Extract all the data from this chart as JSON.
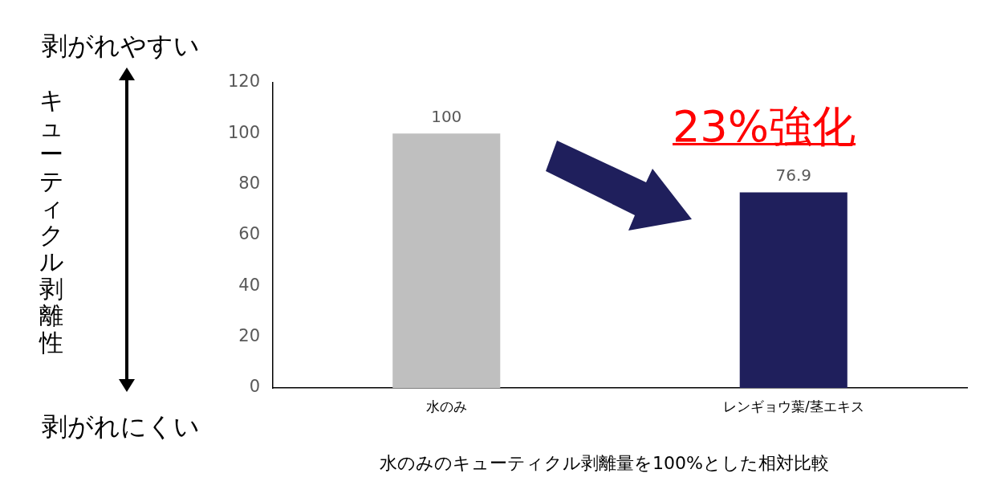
{
  "chart_data": {
    "type": "bar",
    "categories": [
      "水のみ",
      "レンギョウ葉/茎エキス"
    ],
    "values": [
      100,
      76.9
    ],
    "colors": [
      "#bfbfbf",
      "#1f1f5c"
    ],
    "ylim": [
      0,
      120
    ],
    "yticks": [
      0,
      20,
      40,
      60,
      80,
      100,
      120
    ],
    "grid": false,
    "legend": false,
    "data_labels": true,
    "xlabel": "水のみのキューティクル剥離量を100%とした相対比較",
    "annotations": [
      "剥がれやすい",
      "剥がれにくい",
      "23%強化",
      "キューティクル剥離性"
    ]
  }
}
